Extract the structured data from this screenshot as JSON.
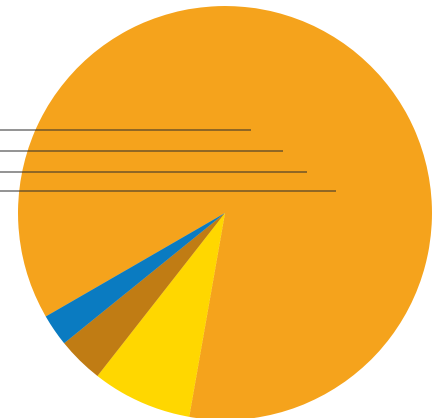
{
  "chart_data": {
    "type": "pie",
    "title": "",
    "start_angle_deg": 210,
    "direction": "clockwise",
    "slices": [
      {
        "value": 86.1,
        "color": "#F5A31C"
      },
      {
        "value": 7.8,
        "color": "#FFD700"
      },
      {
        "value": 3.6,
        "color": "#C07C14"
      },
      {
        "value": 2.5,
        "color": "#0A7BC1"
      }
    ],
    "leader_lines": true,
    "legend": "none"
  }
}
